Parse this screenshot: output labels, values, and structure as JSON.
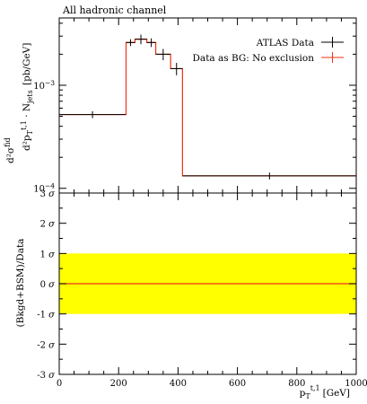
{
  "chart_data": [
    {
      "type": "histogram",
      "title": "All hadronic channel",
      "ylabel_parts": {
        "main": "d²σ",
        "main_sup": "fid",
        "denom": "d²p",
        "denom_sub": "T",
        "denom_sup": "t,1",
        "denom_tail": " · N",
        "denom_tail_sub": "jets",
        "unit": "[pb/GeV]"
      },
      "yscale": "log",
      "ylim": [
        9e-05,
        0.0045
      ],
      "yticks": [
        {
          "value": 0.0001,
          "base": "10",
          "exp": "−4"
        },
        {
          "value": 0.001,
          "base": "10",
          "exp": "−3"
        }
      ],
      "xlim": [
        0,
        1000
      ],
      "legend_position": "top-right",
      "series": [
        {
          "name": "ATLAS Data",
          "color": "#000000",
          "points": [
            {
              "x": 112,
              "y": 0.00052,
              "xerr": 112,
              "yerr": 4e-05
            },
            {
              "x": 240,
              "y": 0.0026,
              "xerr": 15,
              "yerr": 0.0002
            },
            {
              "x": 275,
              "y": 0.0028,
              "xerr": 20,
              "yerr": 0.0003
            },
            {
              "x": 310,
              "y": 0.0026,
              "xerr": 15,
              "yerr": 0.00025
            },
            {
              "x": 350,
              "y": 0.002,
              "xerr": 25,
              "yerr": 0.00025
            },
            {
              "x": 395,
              "y": 0.00145,
              "xerr": 20,
              "yerr": 0.0002
            },
            {
              "x": 708,
              "y": 0.000132,
              "xerr": 292,
              "yerr": 1e-05
            }
          ]
        },
        {
          "name": "Data as BG: No exclusion",
          "color": "#ee3311",
          "bins": [
            {
              "lo": 0,
              "hi": 225,
              "y": 0.00052
            },
            {
              "lo": 225,
              "hi": 255,
              "y": 0.0026
            },
            {
              "lo": 255,
              "hi": 295,
              "y": 0.0028
            },
            {
              "lo": 295,
              "hi": 325,
              "y": 0.0026
            },
            {
              "lo": 325,
              "hi": 375,
              "y": 0.002
            },
            {
              "lo": 375,
              "hi": 415,
              "y": 0.00145
            },
            {
              "lo": 415,
              "hi": 1000,
              "y": 0.000132
            }
          ]
        }
      ]
    },
    {
      "type": "ratio",
      "xlabel_parts": {
        "main": "p",
        "sub": "T",
        "sup": "t,1",
        "unit": "[GeV]"
      },
      "ylabel": "(Bkgd+BSM)/Data",
      "ylim": [
        -3,
        3
      ],
      "yticks": [
        {
          "value": 3,
          "label": "3"
        },
        {
          "value": 2,
          "label": "2"
        },
        {
          "value": 1,
          "label": "1"
        },
        {
          "value": 0,
          "label": "0"
        },
        {
          "value": -1,
          "label": "-1"
        },
        {
          "value": -2,
          "label": "-2"
        },
        {
          "value": -3,
          "label": "-3"
        }
      ],
      "sigma_symbol": "σ",
      "xlim": [
        0,
        1000
      ],
      "xticks": [
        0,
        200,
        400,
        600,
        800,
        1000
      ],
      "band": {
        "lo": -1,
        "hi": 1,
        "color": "#ffff00"
      },
      "line": {
        "y": 0,
        "color": "#ee3311"
      }
    }
  ]
}
